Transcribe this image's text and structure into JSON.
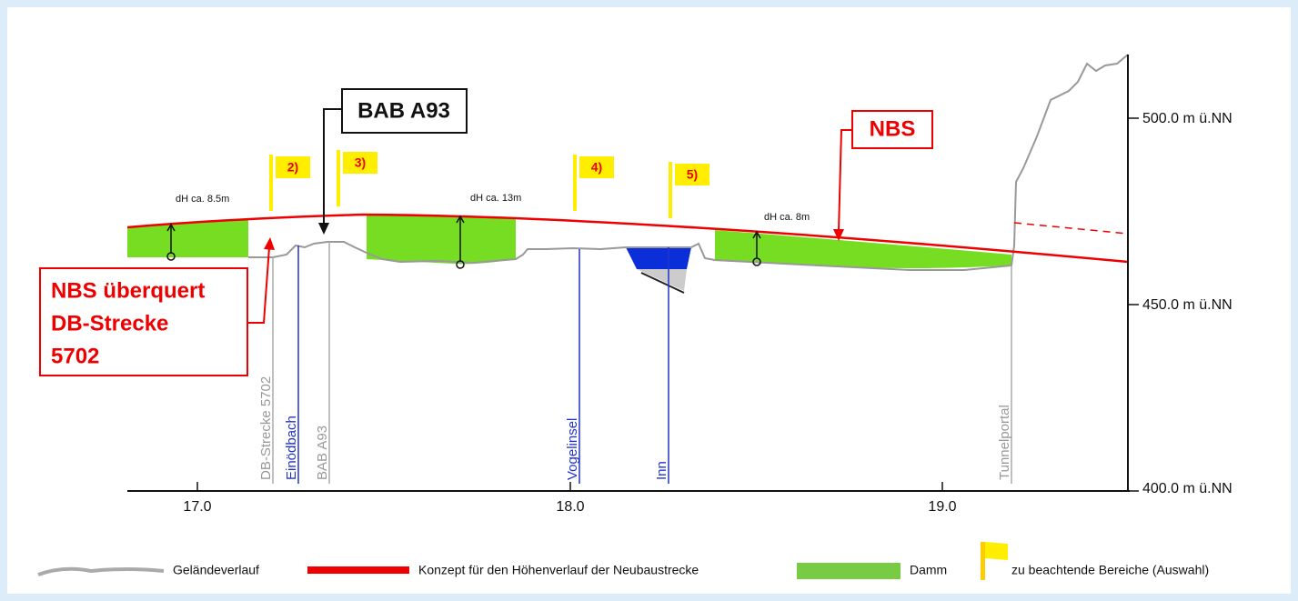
{
  "axis": {
    "x_ticks": [
      "17.0",
      "18.0",
      "19.0"
    ],
    "y_ticks": [
      "500.0 m ü.NN",
      "450.0 m ü.NN",
      "400.0 m ü.NN"
    ]
  },
  "markers": [
    "DB-Strecke 5702",
    "Einödbach",
    "BAB A93",
    "Vogelinsel",
    "Inn",
    "Tunnelportal"
  ],
  "flags": [
    "2)",
    "3)",
    "4)",
    "5)"
  ],
  "heights": [
    "dH ca. 8.5m",
    "dH ca. 13m",
    "dH ca. 8m"
  ],
  "callouts": {
    "bab": "BAB A93",
    "nbs": "NBS",
    "crossing": [
      "NBS überquert",
      "DB-Strecke",
      "5702"
    ]
  },
  "legend": [
    "Geländeverlauf",
    "Konzept für den Höhenverlauf der Neubaustrecke",
    "Damm",
    "zu beachtende Bereiche (Auswahl)"
  ]
}
